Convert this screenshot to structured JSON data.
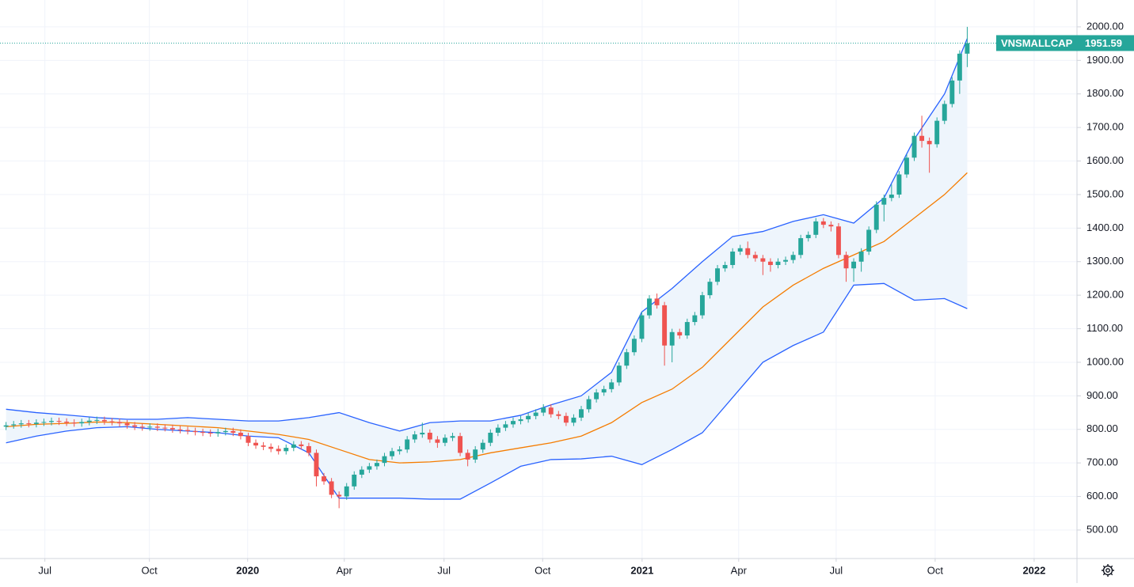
{
  "chart_data": {
    "type": "candlestick",
    "symbol": "VNSMALLCAP",
    "up_color": "#26a69a",
    "down_color": "#ef5350",
    "open": [
      808,
      812,
      815,
      818,
      816,
      820,
      822,
      825,
      823,
      820,
      818,
      822,
      826,
      828,
      824,
      822,
      818,
      812,
      808,
      806,
      808,
      805,
      804,
      800,
      798,
      795,
      792,
      790,
      788,
      792,
      795,
      790,
      780,
      760,
      752,
      748,
      742,
      735,
      745,
      755,
      750,
      730,
      660,
      645,
      605,
      600,
      630,
      665,
      680,
      690,
      700,
      720,
      735,
      740,
      770,
      785,
      790,
      770,
      760,
      775,
      780,
      730,
      710,
      740,
      760,
      790,
      805,
      815,
      825,
      830,
      840,
      850,
      865,
      845,
      840,
      820,
      835,
      860,
      890,
      910,
      920,
      940,
      990,
      1030,
      1070,
      1140,
      1190,
      1170,
      1050,
      1090,
      1080,
      1120,
      1140,
      1200,
      1240,
      1280,
      1290,
      1330,
      1340,
      1320,
      1310,
      1300,
      1290,
      1300,
      1305,
      1320,
      1370,
      1380,
      1420,
      1410,
      1405,
      1320,
      1280,
      1300,
      1330,
      1395,
      1470,
      1490,
      1500,
      1560,
      1610,
      1675,
      1660,
      1650,
      1720,
      1770,
      1840,
      1920
    ],
    "high": [
      822,
      825,
      828,
      828,
      830,
      832,
      835,
      835,
      833,
      830,
      832,
      836,
      838,
      838,
      834,
      832,
      828,
      822,
      818,
      818,
      818,
      815,
      814,
      810,
      808,
      805,
      802,
      800,
      802,
      805,
      805,
      800,
      790,
      770,
      762,
      758,
      752,
      755,
      765,
      765,
      760,
      740,
      670,
      655,
      615,
      640,
      675,
      690,
      700,
      710,
      730,
      745,
      750,
      780,
      795,
      820,
      800,
      780,
      785,
      790,
      790,
      740,
      750,
      770,
      800,
      815,
      825,
      835,
      840,
      850,
      860,
      875,
      875,
      855,
      850,
      845,
      870,
      900,
      920,
      930,
      950,
      1000,
      1040,
      1080,
      1150,
      1200,
      1205,
      1180,
      1100,
      1100,
      1130,
      1150,
      1210,
      1250,
      1290,
      1300,
      1340,
      1350,
      1360,
      1330,
      1320,
      1310,
      1310,
      1315,
      1330,
      1380,
      1390,
      1430,
      1430,
      1420,
      1415,
      1330,
      1310,
      1340,
      1405,
      1480,
      1500,
      1530,
      1570,
      1620,
      1685,
      1735,
      1670,
      1730,
      1780,
      1850,
      1930,
      2000
    ],
    "low": [
      798,
      802,
      805,
      806,
      806,
      810,
      812,
      813,
      810,
      808,
      808,
      812,
      816,
      814,
      812,
      808,
      802,
      798,
      796,
      796,
      795,
      794,
      790,
      788,
      785,
      782,
      780,
      778,
      778,
      782,
      780,
      770,
      750,
      742,
      738,
      732,
      725,
      725,
      735,
      740,
      720,
      630,
      635,
      595,
      565,
      590,
      620,
      655,
      670,
      680,
      690,
      710,
      725,
      730,
      760,
      775,
      760,
      745,
      750,
      765,
      720,
      690,
      700,
      730,
      750,
      780,
      795,
      805,
      815,
      820,
      830,
      840,
      835,
      830,
      810,
      810,
      825,
      850,
      880,
      900,
      910,
      930,
      980,
      1020,
      1060,
      1130,
      1160,
      990,
      1000,
      1070,
      1070,
      1110,
      1130,
      1190,
      1230,
      1270,
      1280,
      1320,
      1310,
      1300,
      1260,
      1270,
      1280,
      1290,
      1295,
      1310,
      1360,
      1370,
      1400,
      1390,
      1310,
      1240,
      1240,
      1270,
      1320,
      1385,
      1420,
      1480,
      1490,
      1550,
      1600,
      1640,
      1565,
      1640,
      1710,
      1760,
      1800,
      1880
    ],
    "close": [
      812,
      815,
      818,
      816,
      820,
      822,
      825,
      823,
      820,
      818,
      822,
      826,
      828,
      824,
      822,
      818,
      812,
      808,
      806,
      808,
      805,
      804,
      800,
      798,
      795,
      792,
      790,
      788,
      792,
      795,
      790,
      780,
      760,
      752,
      748,
      742,
      735,
      745,
      755,
      750,
      730,
      660,
      645,
      605,
      600,
      630,
      665,
      680,
      690,
      700,
      720,
      735,
      740,
      770,
      785,
      790,
      770,
      760,
      775,
      780,
      730,
      710,
      740,
      760,
      790,
      805,
      815,
      825,
      830,
      840,
      850,
      865,
      845,
      840,
      820,
      835,
      860,
      890,
      910,
      920,
      940,
      990,
      1030,
      1070,
      1140,
      1190,
      1170,
      1050,
      1090,
      1080,
      1120,
      1140,
      1200,
      1240,
      1280,
      1290,
      1330,
      1340,
      1320,
      1310,
      1300,
      1290,
      1300,
      1305,
      1320,
      1370,
      1380,
      1420,
      1410,
      1405,
      1320,
      1280,
      1300,
      1330,
      1395,
      1470,
      1490,
      1500,
      1560,
      1610,
      1675,
      1660,
      1650,
      1720,
      1770,
      1840,
      1920,
      1951.59
    ],
    "bands": {
      "band_color": "#2962ff",
      "middle_color": "#f57c00",
      "fill": "#eef5fc",
      "x": [
        0,
        4,
        8,
        12,
        16,
        20,
        24,
        28,
        32,
        36,
        40,
        44,
        48,
        52,
        56,
        60,
        64,
        68,
        72,
        76,
        80,
        84,
        88,
        92,
        96,
        100,
        104,
        108,
        112,
        116,
        120,
        124,
        127
      ],
      "upper": [
        860,
        850,
        843,
        835,
        830,
        830,
        835,
        830,
        825,
        825,
        835,
        850,
        820,
        795,
        820,
        825,
        825,
        842,
        873,
        900,
        970,
        1150,
        1220,
        1300,
        1375,
        1390,
        1420,
        1440,
        1415,
        1490,
        1665,
        1800,
        1965
      ],
      "middle": [
        808,
        815,
        818,
        822,
        820,
        815,
        810,
        805,
        795,
        785,
        770,
        740,
        710,
        700,
        703,
        710,
        730,
        745,
        760,
        780,
        820,
        880,
        920,
        985,
        1075,
        1165,
        1230,
        1280,
        1320,
        1360,
        1430,
        1500,
        1565
      ],
      "lower": [
        760,
        780,
        795,
        805,
        808,
        800,
        795,
        790,
        780,
        775,
        730,
        595,
        595,
        595,
        592,
        592,
        640,
        690,
        710,
        712,
        720,
        695,
        740,
        790,
        895,
        1000,
        1050,
        1090,
        1230,
        1235,
        1185,
        1190,
        1160
      ]
    },
    "xlim": [
      -0.8,
      141.5
    ],
    "xticks": [
      {
        "value": 5.13,
        "label": "Jul"
      },
      {
        "value": 18.94,
        "label": "Oct"
      },
      {
        "value": 31.92,
        "label": "2020"
      },
      {
        "value": 44.69,
        "label": "Apr"
      },
      {
        "value": 57.87,
        "label": "Jul"
      },
      {
        "value": 70.9,
        "label": "Oct"
      },
      {
        "value": 84.04,
        "label": "2021"
      },
      {
        "value": 96.8,
        "label": "Apr"
      },
      {
        "value": 109.68,
        "label": "Jul"
      },
      {
        "value": 122.76,
        "label": "Oct"
      },
      {
        "value": 135.84,
        "label": "2022"
      }
    ],
    "ylim": [
      415,
      2080
    ],
    "yticks": [
      {
        "value": 500,
        "label": "500.00"
      },
      {
        "value": 600,
        "label": "600.00"
      },
      {
        "value": 700,
        "label": "700.00"
      },
      {
        "value": 800,
        "label": "800.00"
      },
      {
        "value": 900,
        "label": "900.00"
      },
      {
        "value": 1000,
        "label": "1000.00"
      },
      {
        "value": 1100,
        "label": "1100.00"
      },
      {
        "value": 1200,
        "label": "1200.00"
      },
      {
        "value": 1300,
        "label": "1300.00"
      },
      {
        "value": 1400,
        "label": "1400.00"
      },
      {
        "value": 1500,
        "label": "1500.00"
      },
      {
        "value": 1600,
        "label": "1600.00"
      },
      {
        "value": 1700,
        "label": "1700.00"
      },
      {
        "value": 1800,
        "label": "1800.00"
      },
      {
        "value": 1900,
        "label": "1900.00"
      },
      {
        "value": 2000,
        "label": "2000.00"
      }
    ],
    "grid": true
  }
}
